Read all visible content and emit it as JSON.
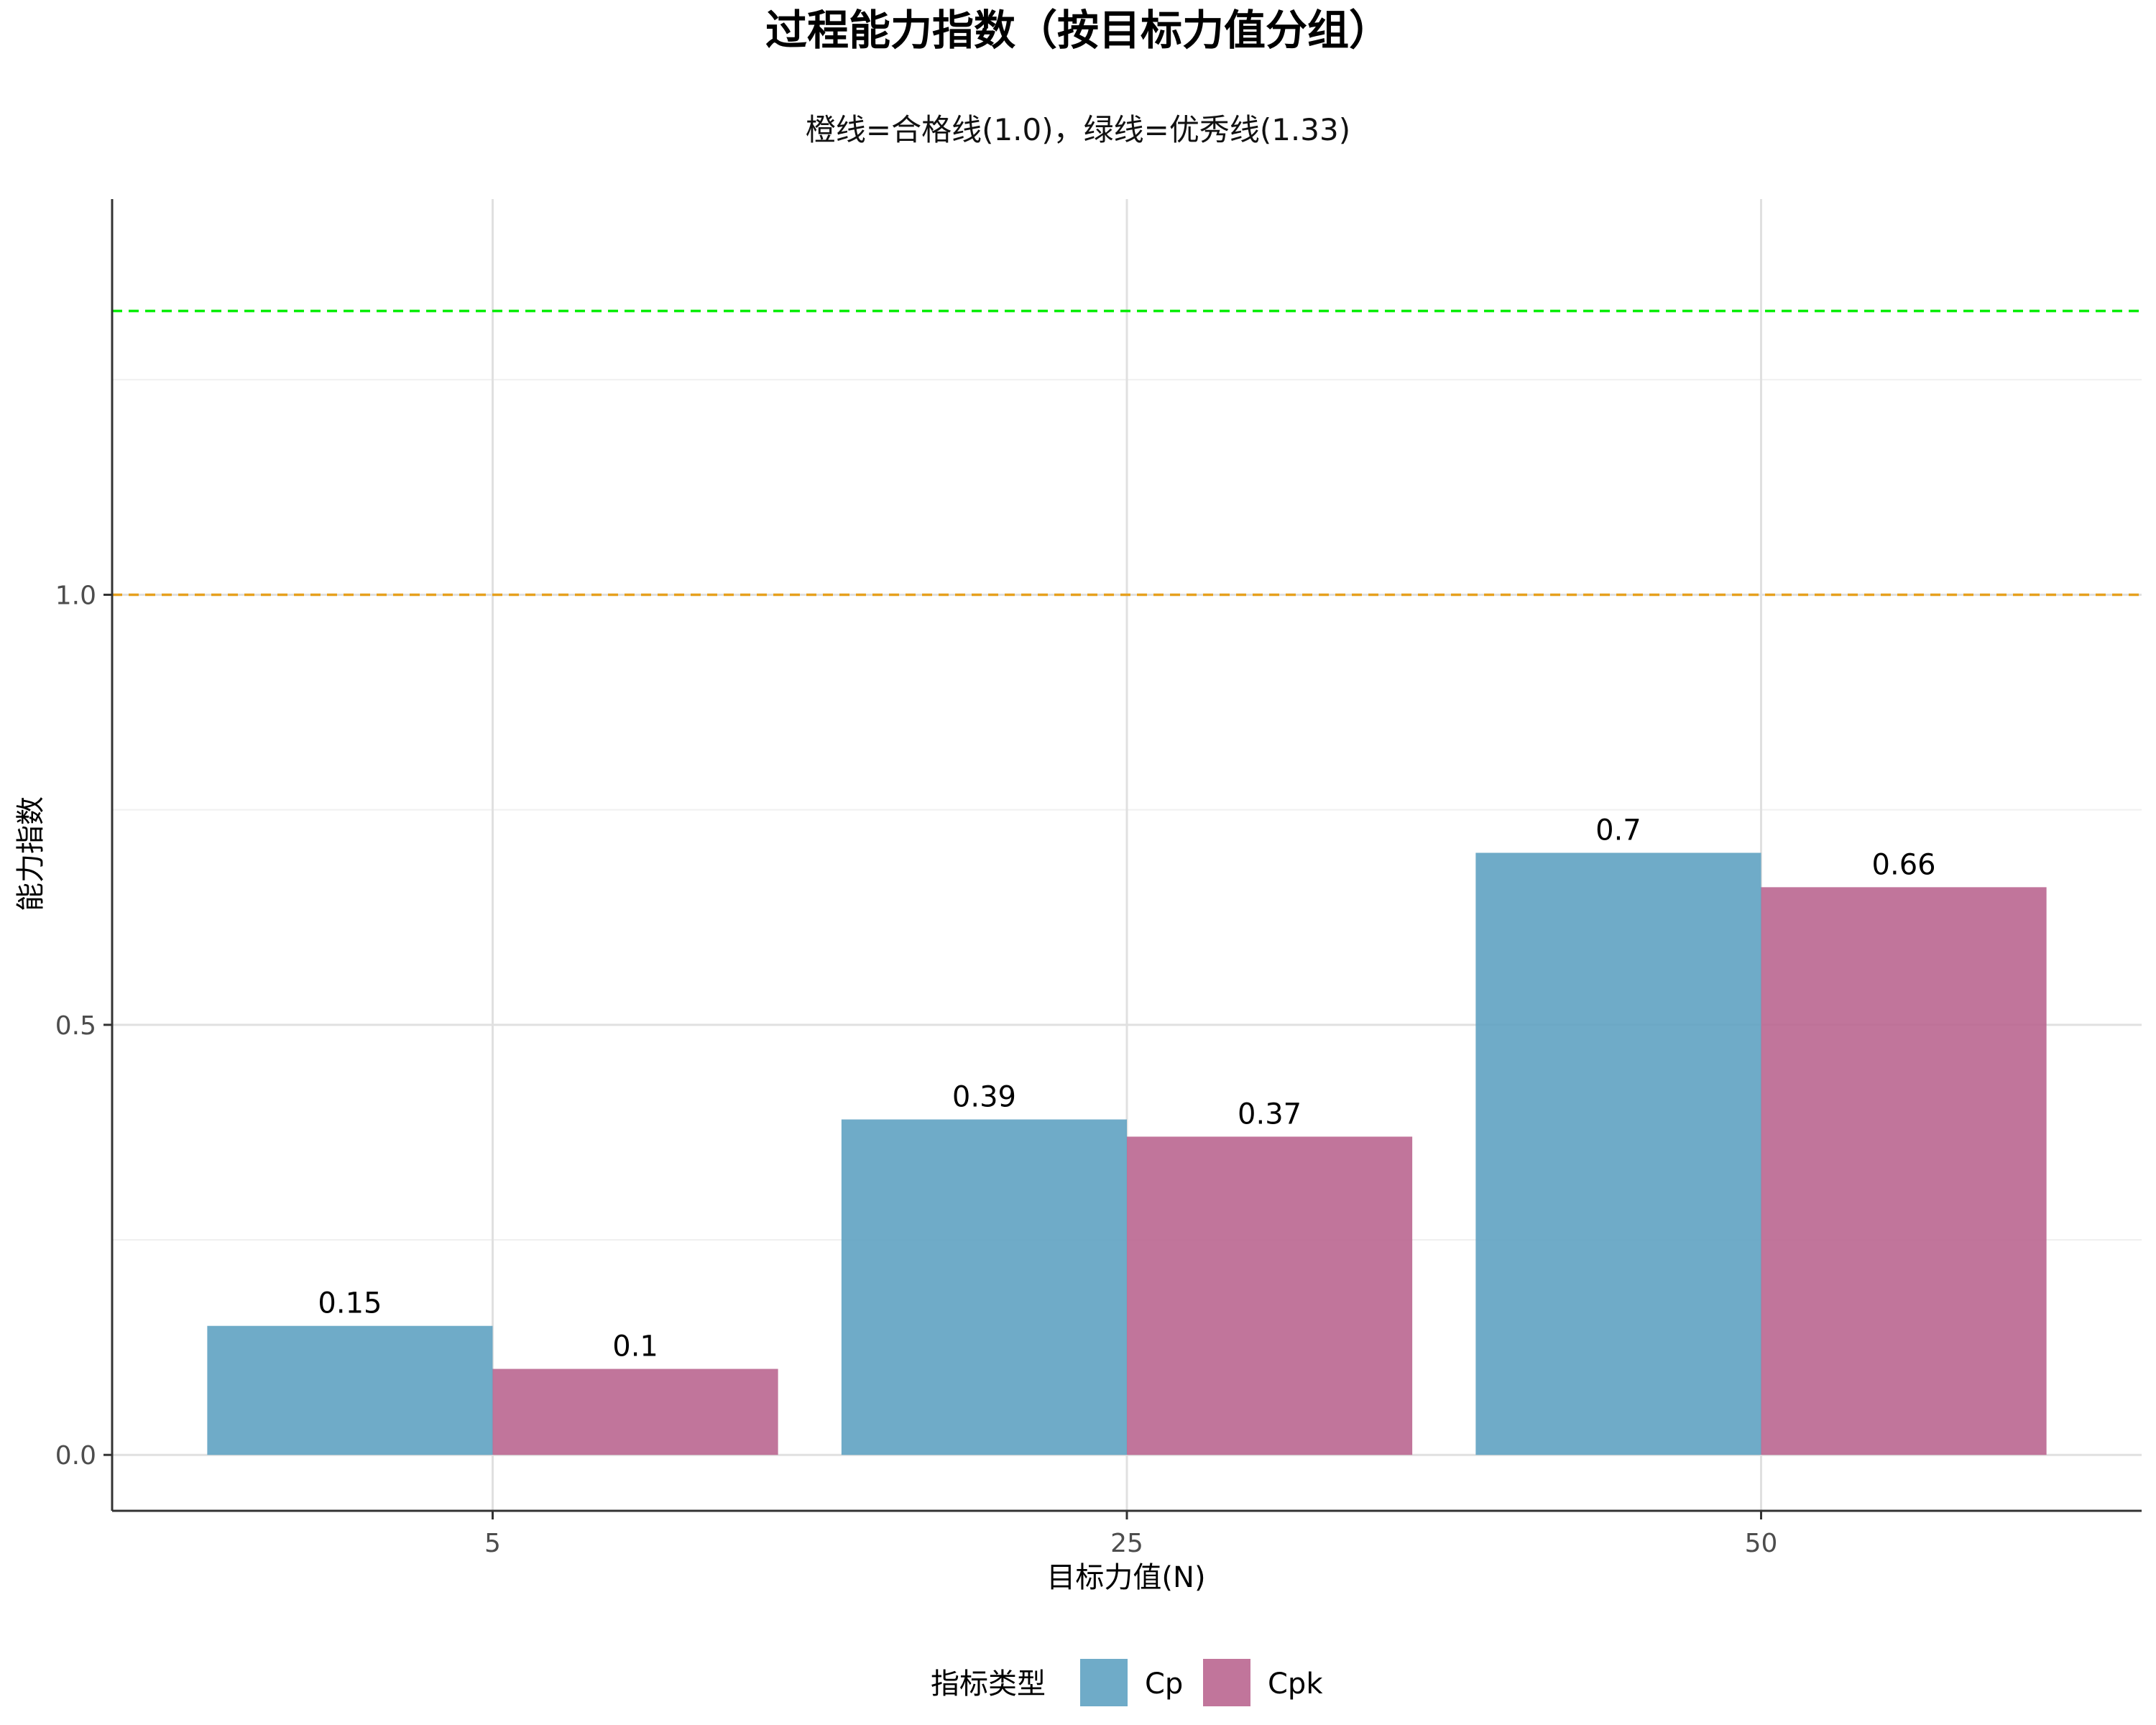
{
  "chart_data": {
    "type": "bar",
    "title": "过程能力指数（按目标力值分组）",
    "subtitle": "橙线=合格线(1.0)，绿线=优秀线(1.33)",
    "xlabel": "目标力值(N)",
    "ylabel": "能力指数",
    "categories": [
      "5",
      "25",
      "50"
    ],
    "series": [
      {
        "name": "Cp",
        "values": [
          0.15,
          0.39,
          0.7
        ],
        "labels": [
          "0.15",
          "0.39",
          "0.7"
        ],
        "color": "#5b9fc0"
      },
      {
        "name": "Cpk",
        "values": [
          0.1,
          0.37,
          0.66
        ],
        "labels": [
          "0.1",
          "0.37",
          "0.66"
        ],
        "color": "#b8628d"
      }
    ],
    "ylim": [
      -0.065,
      1.46
    ],
    "yticks": [
      0.0,
      0.5,
      1.0
    ],
    "ytick_labels": [
      "0.0",
      "0.5",
      "1.0"
    ],
    "reference_lines": [
      {
        "name": "合格线",
        "value": 1.0,
        "color": "#e6a01e",
        "style": "dashed"
      },
      {
        "name": "优秀线",
        "value": 1.33,
        "color": "#00ee00",
        "style": "dashed"
      }
    ],
    "legend": {
      "title": "指标类型",
      "position": "bottom"
    },
    "grid": true
  }
}
